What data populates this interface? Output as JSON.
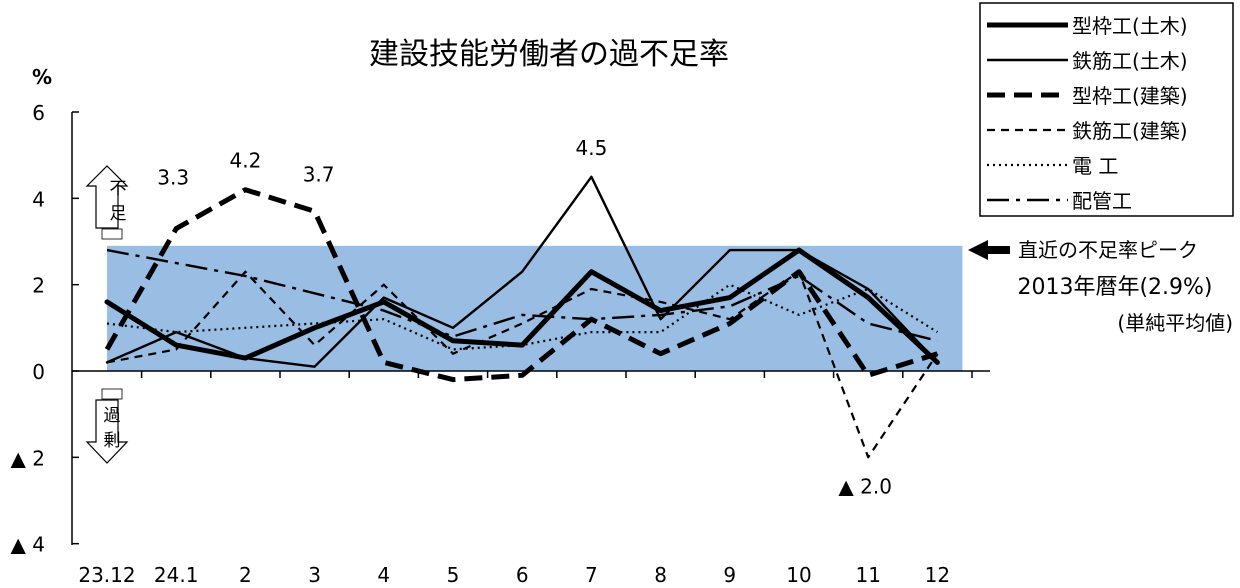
{
  "chart_data": {
    "type": "line",
    "title": "建設技能労働者の過不足率",
    "ylabel": "%",
    "ylim": [
      -4,
      6
    ],
    "yticks": [
      {
        "value": 6,
        "label": "6"
      },
      {
        "value": 4,
        "label": "4"
      },
      {
        "value": 2,
        "label": "2"
      },
      {
        "value": 0,
        "label": "0"
      },
      {
        "value": -2,
        "label": "▲ 2"
      },
      {
        "value": -4,
        "label": "▲ 4"
      }
    ],
    "categories": [
      "23.12",
      "24.1",
      "2",
      "3",
      "4",
      "5",
      "6",
      "7",
      "8",
      "9",
      "10",
      "11",
      "12"
    ],
    "series": [
      {
        "name": "型枠工(土木)",
        "style": "thick-solid",
        "values": [
          1.6,
          0.6,
          0.3,
          1.0,
          1.6,
          0.7,
          0.6,
          2.3,
          1.4,
          1.7,
          2.8,
          1.7,
          0.2
        ]
      },
      {
        "name": "鉄筋工(土木)",
        "style": "thin-solid",
        "values": [
          0.2,
          0.9,
          0.3,
          0.1,
          1.7,
          1.0,
          2.3,
          4.5,
          1.2,
          2.8,
          2.8,
          1.9,
          0.2
        ]
      },
      {
        "name": "型枠工(建築)",
        "style": "thick-dash",
        "values": [
          0.5,
          3.3,
          4.2,
          3.7,
          0.2,
          -0.2,
          -0.1,
          1.2,
          0.4,
          1.1,
          2.3,
          -0.1,
          0.4
        ]
      },
      {
        "name": "鉄筋工(建築)",
        "style": "thin-dash",
        "values": [
          0.2,
          0.5,
          2.3,
          0.6,
          2.0,
          0.4,
          1.1,
          1.9,
          1.6,
          1.2,
          2.3,
          -2.0,
          0.4
        ]
      },
      {
        "name": "電 工",
        "style": "dotted",
        "values": [
          1.1,
          0.9,
          1.0,
          1.1,
          1.2,
          0.5,
          0.6,
          0.9,
          0.9,
          2.0,
          1.3,
          1.9,
          0.9
        ]
      },
      {
        "name": "配管工",
        "style": "dash-dot",
        "values": [
          2.8,
          2.5,
          2.2,
          1.8,
          1.4,
          0.8,
          1.3,
          1.2,
          1.3,
          1.5,
          2.2,
          1.1,
          0.7
        ]
      }
    ],
    "data_labels": [
      {
        "series": 2,
        "index": 1,
        "text": "3.3"
      },
      {
        "series": 2,
        "index": 2,
        "text": "4.2"
      },
      {
        "series": 2,
        "index": 3,
        "text": "3.7"
      },
      {
        "series": 1,
        "index": 7,
        "text": "4.5"
      },
      {
        "series": 3,
        "index": 11,
        "text": "▲ 2.0"
      }
    ],
    "reference_band": {
      "y0": 0,
      "y1": 2.9,
      "color": "#99bde3",
      "label_lines": [
        "直近の不足率ピーク",
        "2013年暦年(2.9%)",
        "(単純平均値)"
      ]
    },
    "indicators": {
      "shortage_chars": [
        "不",
        "足"
      ],
      "surplus_chars": [
        "過",
        "剰"
      ]
    },
    "grid": false,
    "legend_position": "top-right"
  }
}
